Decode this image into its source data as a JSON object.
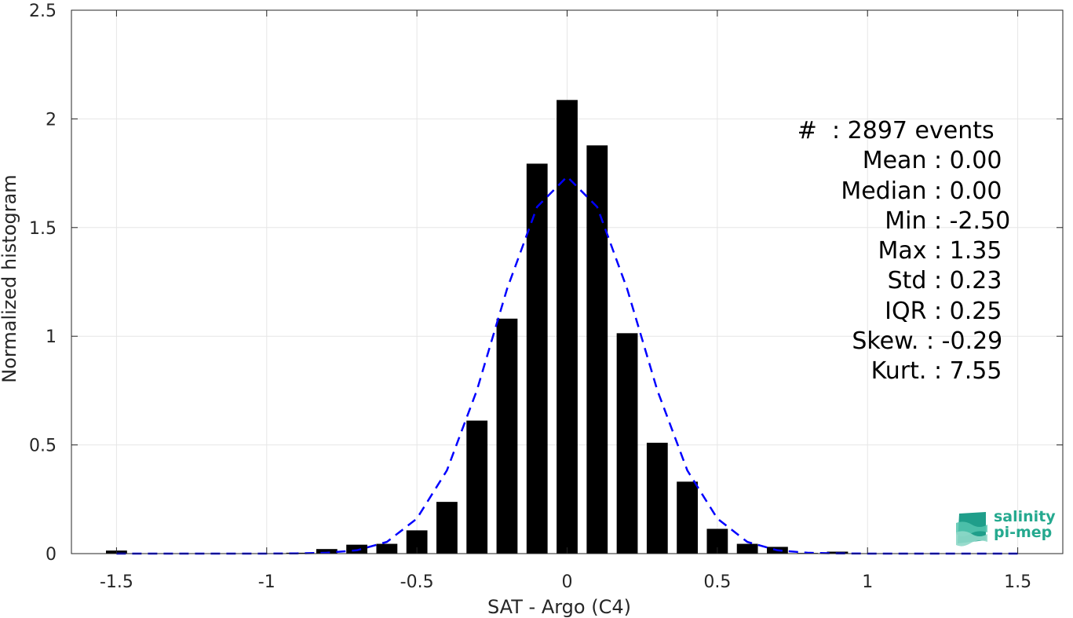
{
  "chart_data": {
    "type": "bar",
    "xlabel": "SAT - Argo (C4)",
    "ylabel": "Normalized histogram",
    "xlim": [
      -1.65,
      1.65
    ],
    "ylim": [
      0,
      2.5
    ],
    "xticks": [
      "-1.5",
      "-1",
      "-0.5",
      "0",
      "0.5",
      "1",
      "1.5"
    ],
    "xtick_values": [
      -1.5,
      -1,
      -0.5,
      0,
      0.5,
      1,
      1.5
    ],
    "yticks": [
      "0",
      "0.5",
      "1",
      "1.5",
      "2",
      "2.5"
    ],
    "ytick_values": [
      0,
      0.5,
      1,
      1.5,
      2,
      2.5
    ],
    "grid": true,
    "bar_width": 0.07,
    "bars": {
      "x": [
        -1.5,
        -1.4,
        -1.3,
        -1.2,
        -1.1,
        -1.0,
        -0.9,
        -0.8,
        -0.7,
        -0.6,
        -0.5,
        -0.4,
        -0.3,
        -0.2,
        -0.1,
        0.0,
        0.1,
        0.2,
        0.3,
        0.4,
        0.5,
        0.6,
        0.7,
        0.8,
        0.9,
        1.0,
        1.1,
        1.2,
        1.3,
        1.4,
        1.5
      ],
      "values": [
        0.014,
        0,
        0,
        0,
        0,
        0,
        0.004,
        0.021,
        0.041,
        0.045,
        0.107,
        0.238,
        0.612,
        1.081,
        1.794,
        2.087,
        1.878,
        1.014,
        0.51,
        0.331,
        0.114,
        0.045,
        0.031,
        0.003,
        0.009,
        0,
        0,
        0,
        0,
        0,
        0
      ],
      "color": "#000000"
    },
    "fit": {
      "style": "dashed",
      "color": "#0000ff",
      "x": [
        -1.5,
        -1.4,
        -1.3,
        -1.2,
        -1.1,
        -1.0,
        -0.9,
        -0.8,
        -0.7,
        -0.6,
        -0.5,
        -0.4,
        -0.3,
        -0.2,
        -0.1,
        0.0,
        0.1,
        0.2,
        0.3,
        0.4,
        0.5,
        0.6,
        0.7,
        0.8,
        0.9,
        1.0,
        1.1,
        1.2,
        1.3,
        1.4,
        1.5
      ],
      "values": [
        0,
        0,
        0,
        0,
        0,
        0,
        0.001,
        0.004,
        0.015,
        0.054,
        0.161,
        0.383,
        0.753,
        1.218,
        1.595,
        1.734,
        1.595,
        1.218,
        0.753,
        0.383,
        0.161,
        0.054,
        0.015,
        0.004,
        0.001,
        0,
        0,
        0,
        0,
        0,
        0
      ]
    }
  },
  "stats": [
    {
      "key": "#  ",
      "value": ": 2897 events"
    },
    {
      "key": "Mean ",
      "value": ": 0.00"
    },
    {
      "key": "Median ",
      "value": ": 0.00"
    },
    {
      "key": "Min ",
      "value": ": -2.50"
    },
    {
      "key": "Max ",
      "value": ": 1.35"
    },
    {
      "key": "Std ",
      "value": ": 0.23"
    },
    {
      "key": "IQR ",
      "value": ": 0.25"
    },
    {
      "key": "Skew. ",
      "value": ": -0.29"
    },
    {
      "key": "Kurt. ",
      "value": ": 7.55"
    }
  ],
  "logo": {
    "line1": "salinity",
    "line2": "pi-mep",
    "color": "#25a98f"
  }
}
